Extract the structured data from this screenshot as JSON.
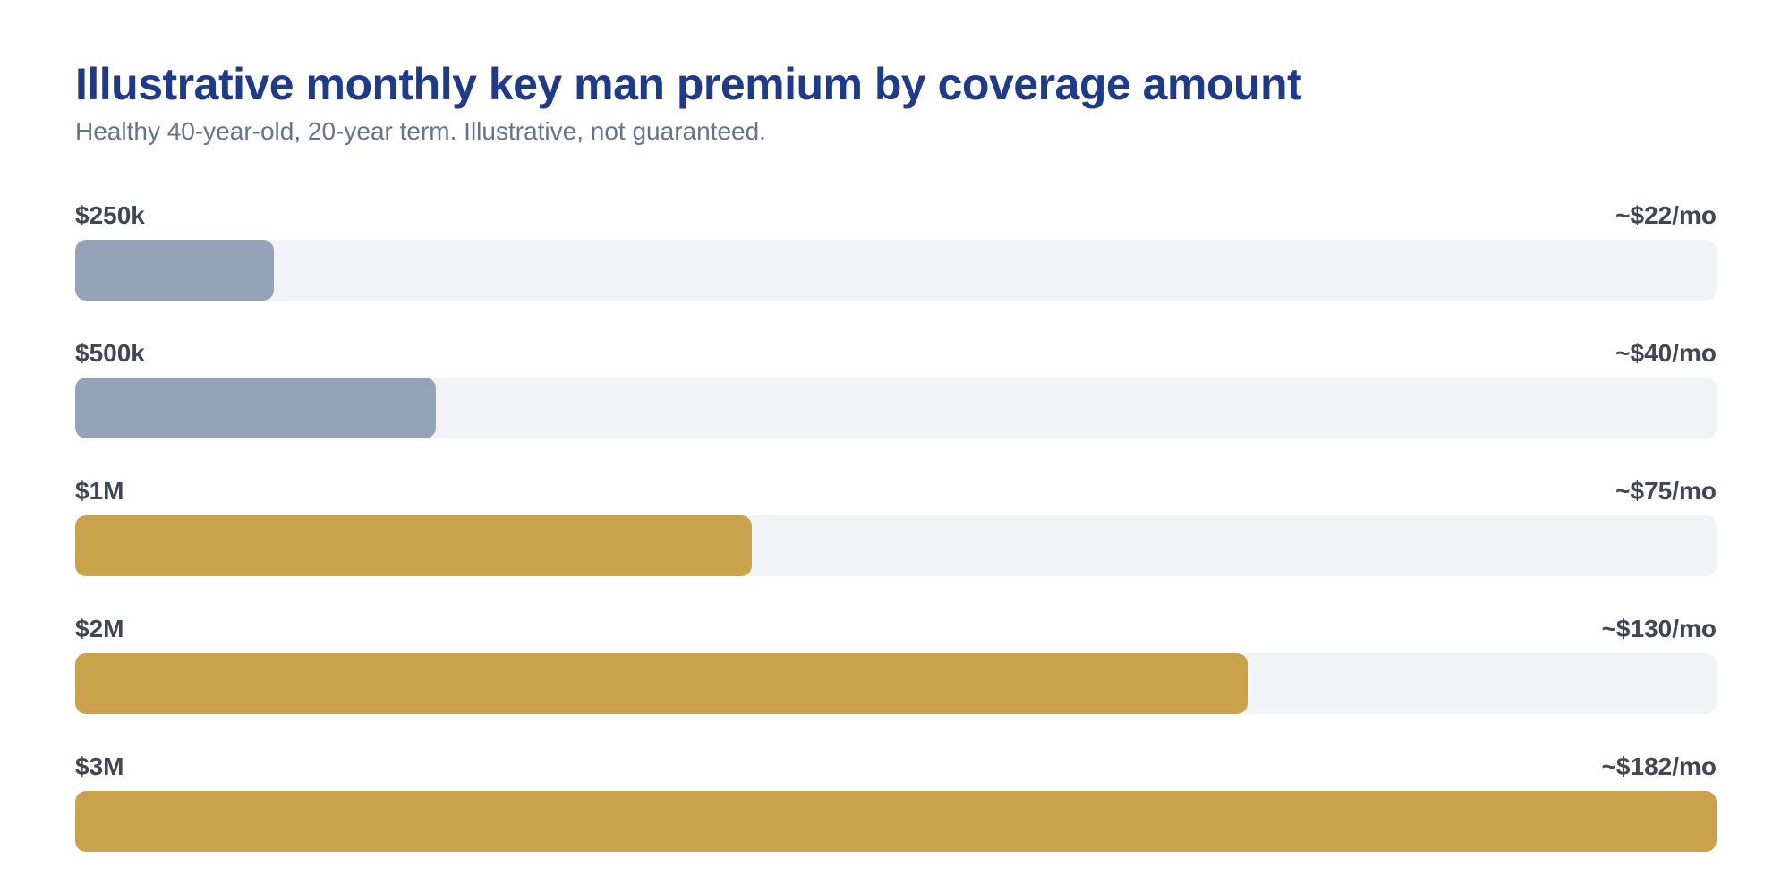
{
  "chart_data": {
    "type": "bar",
    "orientation": "horizontal",
    "title": "Illustrative monthly key man premium by coverage amount",
    "subtitle": "Healthy 40-year-old, 20-year term. Illustrative, not guaranteed.",
    "xlabel": "",
    "ylabel": "",
    "categories": [
      "$250k",
      "$500k",
      "$1M",
      "$2M",
      "$3M"
    ],
    "values": [
      22,
      40,
      75,
      130,
      182
    ],
    "value_labels": [
      "~$22/mo",
      "~$40/mo",
      "~$75/mo",
      "~$130/mo",
      "~$182/mo"
    ],
    "xlim": [
      0,
      182
    ],
    "grid": false,
    "legend": "none",
    "colors": {
      "title": "#1f3a8a",
      "subtitle": "#64748b",
      "label": "#3f4654",
      "track": "#f1f3f6",
      "lower_tier": "#94a3b8",
      "higher_tier": "#c9a24b"
    },
    "bar_colors": [
      "#94a3b8",
      "#94a3b8",
      "#c9a24b",
      "#c9a24b",
      "#c9a24b"
    ]
  }
}
